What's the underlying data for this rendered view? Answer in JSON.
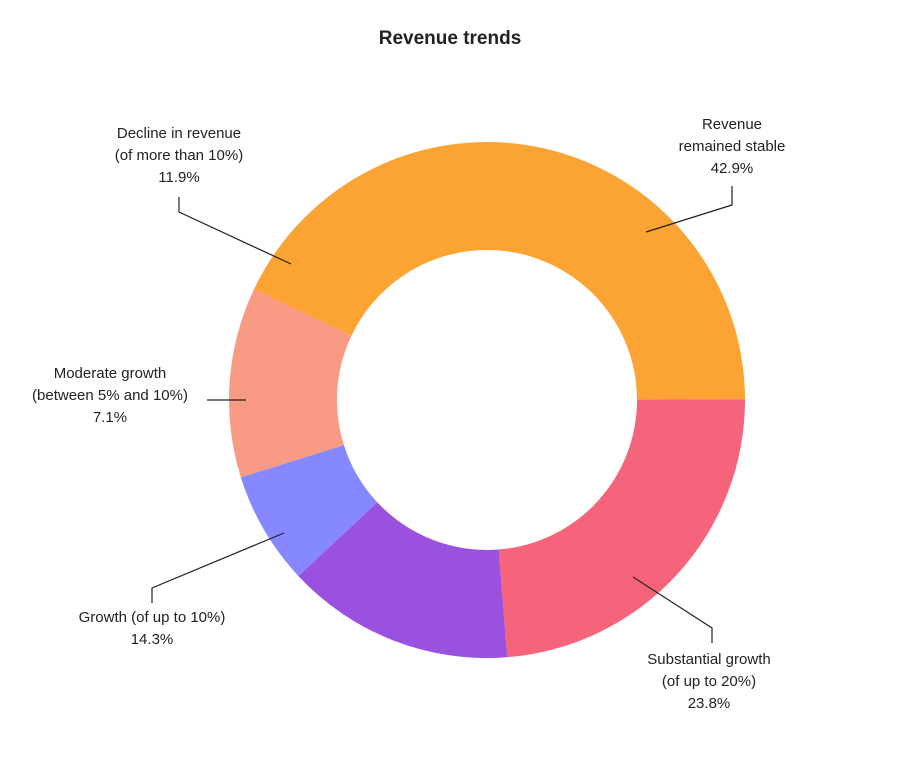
{
  "chart_data": {
    "type": "pie",
    "title": "Revenue trends",
    "donut": true,
    "labels_on_chart": true,
    "legend": "none",
    "slices": [
      {
        "label_lines": [
          "Revenue",
          "remained stable"
        ],
        "value": 42.9,
        "value_label": "42.9%",
        "color": "#FBA333"
      },
      {
        "label_lines": [
          "Substantial growth",
          "(of up to 20%)"
        ],
        "value": 23.8,
        "value_label": "23.8%",
        "color": "#F5647A"
      },
      {
        "label_lines": [
          "Growth (of up to 10%)"
        ],
        "value": 14.3,
        "value_label": "14.3%",
        "color": "#9B51E0"
      },
      {
        "label_lines": [
          "Moderate growth",
          "(between 5% and 10%)"
        ],
        "value": 7.1,
        "value_label": "7.1%",
        "color": "#8588FF"
      },
      {
        "label_lines": [
          "Decline in revenue",
          "(of more than 10%)"
        ],
        "value": 11.9,
        "value_label": "11.9%",
        "color": "#F99B84"
      }
    ]
  }
}
